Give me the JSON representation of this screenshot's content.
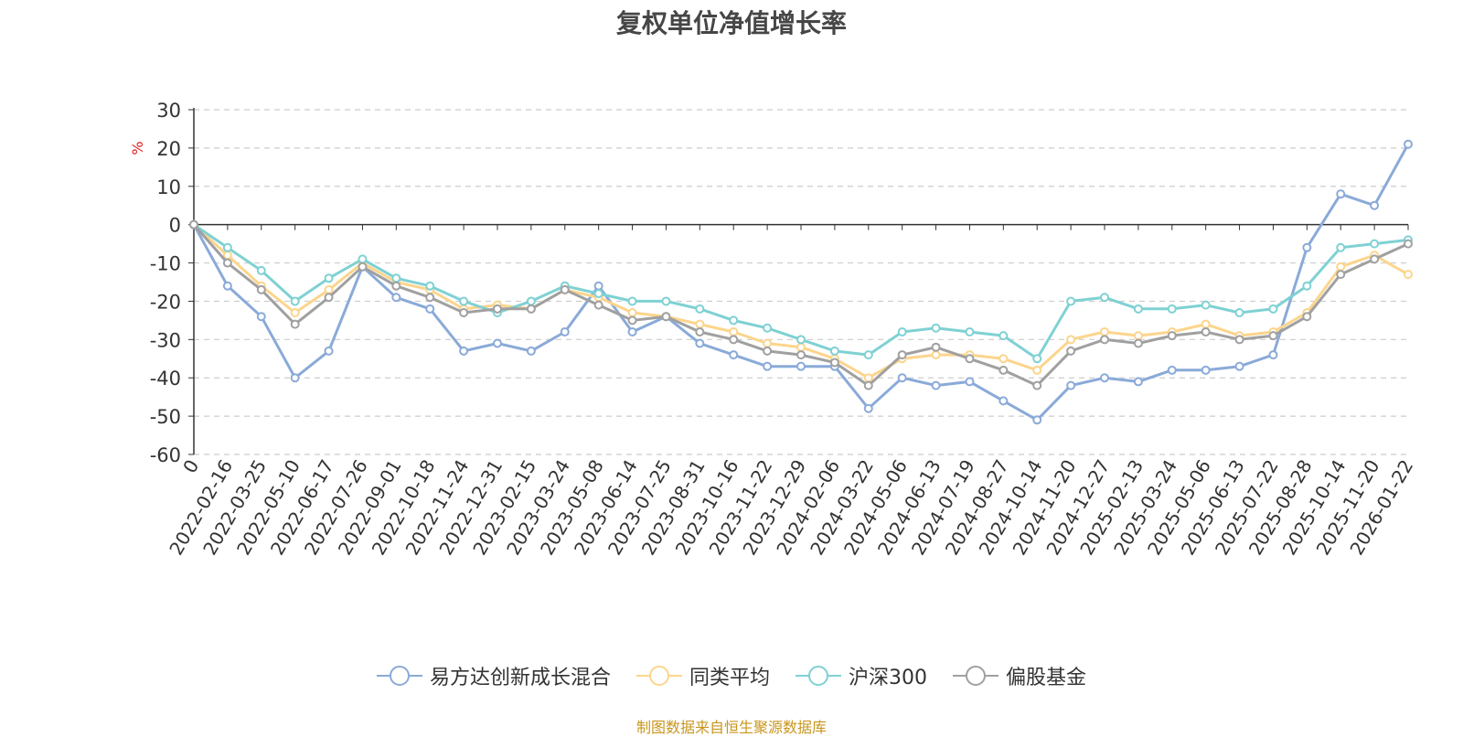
{
  "title": "复权单位净值增长率",
  "footer": "制图数据来自恒生聚源数据库",
  "chart_data": {
    "type": "line",
    "title": "复权单位净值增长率",
    "ylabel": "%",
    "ylim": [
      -60,
      30
    ],
    "yticks": [
      30,
      20,
      10,
      0,
      -10,
      -20,
      -30,
      -40,
      -50,
      -60
    ],
    "grid": true,
    "legend_position": "bottom",
    "x": [
      "0",
      "2022-02-16",
      "2022-03-25",
      "2022-05-10",
      "2022-06-17",
      "2022-07-26",
      "2022-09-01",
      "2022-10-18",
      "2022-11-24",
      "2022-12-31",
      "2023-02-15",
      "2023-03-24",
      "2023-05-08",
      "2023-06-14",
      "2023-07-25",
      "2023-08-31",
      "2023-10-16",
      "2023-11-22",
      "2023-12-29",
      "2024-02-06",
      "2024-03-22",
      "2024-05-06",
      "2024-06-13",
      "2024-07-19",
      "2024-08-27",
      "2024-10-14",
      "2024-11-20",
      "2024-12-27",
      "2025-02-13",
      "2025-03-24",
      "2025-05-06",
      "2025-06-13",
      "2025-07-22",
      "2025-08-28",
      "2025-10-14",
      "2025-11-20",
      "2026-01-22"
    ],
    "series": [
      {
        "name": "易方达创新成长混合",
        "color": "#8aaad8",
        "values": [
          0,
          -16,
          -24,
          -40,
          -33,
          -11,
          -19,
          -22,
          -33,
          -31,
          -33,
          -28,
          -16,
          -28,
          -24,
          -31,
          -34,
          -37,
          -37,
          -37,
          -48,
          -40,
          -42,
          -41,
          -46,
          -51,
          -42,
          -40,
          -41,
          -38,
          -38,
          -37,
          -34,
          -6,
          8,
          5,
          21
        ]
      },
      {
        "name": "同类平均",
        "color": "#fcd58c",
        "values": [
          0,
          -8,
          -16,
          -23,
          -17,
          -10,
          -15,
          -17,
          -22,
          -21,
          -22,
          -17,
          -19,
          -23,
          -24,
          -26,
          -28,
          -31,
          -32,
          -35,
          -40,
          -35,
          -34,
          -34,
          -35,
          -38,
          -30,
          -28,
          -29,
          -28,
          -26,
          -29,
          -28,
          -23,
          -11,
          -8,
          -13
        ]
      },
      {
        "name": "沪深300",
        "color": "#7fd1d3",
        "values": [
          0,
          -6,
          -12,
          -20,
          -14,
          -9,
          -14,
          -16,
          -20,
          -23,
          -20,
          -16,
          -18,
          -20,
          -20,
          -22,
          -25,
          -27,
          -30,
          -33,
          -34,
          -28,
          -27,
          -28,
          -29,
          -35,
          -20,
          -19,
          -22,
          -22,
          -21,
          -23,
          -22,
          -16,
          -6,
          -5,
          -4
        ]
      },
      {
        "name": "偏股基金",
        "color": "#a0a0a0",
        "values": [
          0,
          -10,
          -17,
          -26,
          -19,
          -11,
          -16,
          -19,
          -23,
          -22,
          -22,
          -17,
          -21,
          -25,
          -24,
          -28,
          -30,
          -33,
          -34,
          -36,
          -42,
          -34,
          -32,
          -35,
          -38,
          -42,
          -33,
          -30,
          -31,
          -29,
          -28,
          -30,
          -29,
          -24,
          -13,
          -9,
          -5
        ]
      }
    ]
  }
}
